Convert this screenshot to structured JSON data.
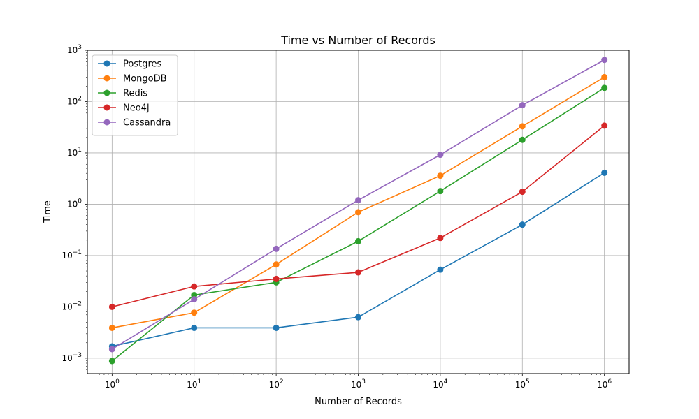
{
  "chart_data": {
    "type": "line",
    "title": "Time vs Number of Records",
    "xlabel": "Number of Records",
    "ylabel": "Time",
    "xscale": "log",
    "yscale": "log",
    "xlim": [
      0.5,
      2000000
    ],
    "ylim": [
      0.0005,
      1000
    ],
    "grid": true,
    "legend_position": "top-left",
    "x": [
      1,
      10,
      100,
      1000,
      10000,
      100000,
      1000000
    ],
    "xticks": [
      {
        "value": 1,
        "base": "10",
        "exp": "0"
      },
      {
        "value": 10,
        "base": "10",
        "exp": "1"
      },
      {
        "value": 100,
        "base": "10",
        "exp": "2"
      },
      {
        "value": 1000,
        "base": "10",
        "exp": "3"
      },
      {
        "value": 10000,
        "base": "10",
        "exp": "4"
      },
      {
        "value": 100000,
        "base": "10",
        "exp": "5"
      },
      {
        "value": 1000000,
        "base": "10",
        "exp": "6"
      }
    ],
    "yticks": [
      {
        "value": 0.001,
        "base": "10",
        "exp": "−3"
      },
      {
        "value": 0.01,
        "base": "10",
        "exp": "−2"
      },
      {
        "value": 0.1,
        "base": "10",
        "exp": "−1"
      },
      {
        "value": 1,
        "base": "10",
        "exp": "0"
      },
      {
        "value": 10,
        "base": "10",
        "exp": "1"
      },
      {
        "value": 100,
        "base": "10",
        "exp": "2"
      },
      {
        "value": 1000,
        "base": "10",
        "exp": "3"
      }
    ],
    "series": [
      {
        "name": "Postgres",
        "color": "#1f77b4",
        "values": [
          0.0017,
          0.0039,
          0.0039,
          0.0063,
          0.053,
          0.4,
          4.1
        ]
      },
      {
        "name": "MongoDB",
        "color": "#ff7f0e",
        "values": [
          0.0039,
          0.0077,
          0.067,
          0.7,
          3.6,
          33,
          300
        ]
      },
      {
        "name": "Redis",
        "color": "#2ca02c",
        "values": [
          0.00088,
          0.017,
          0.03,
          0.19,
          1.8,
          18,
          185
        ]
      },
      {
        "name": "Neo4j",
        "color": "#d62728",
        "values": [
          0.01,
          0.025,
          0.035,
          0.047,
          0.22,
          1.75,
          34
        ]
      },
      {
        "name": "Cassandra",
        "color": "#9467bd",
        "values": [
          0.0015,
          0.014,
          0.135,
          1.2,
          9.2,
          85,
          650
        ]
      }
    ]
  }
}
